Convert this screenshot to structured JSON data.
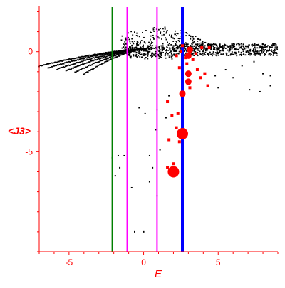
{
  "chart_data": {
    "type": "scatter",
    "title": "",
    "xlabel": "E",
    "ylabel": "<J3>",
    "xlim": [
      -7,
      9
    ],
    "ylim": [
      -10,
      2.3
    ],
    "xticks": [
      -5,
      0,
      5
    ],
    "yticks": [
      -5,
      0
    ],
    "grid": false,
    "colors": {
      "axes": "#ff0000",
      "points_black": "#000000",
      "points_red": "#ff0000",
      "line_green": "#008000",
      "line_magenta": "#ff00ff",
      "line_blue": "#0000ff"
    },
    "vertical_lines": [
      {
        "x": -2.1,
        "color": "green"
      },
      {
        "x": -1.1,
        "color": "magenta"
      },
      {
        "x": 0.9,
        "color": "magenta"
      },
      {
        "x": 2.6,
        "color": "blue"
      }
    ],
    "red_points": [
      {
        "x": 2.6,
        "y": -4.1,
        "size": "large"
      },
      {
        "x": 2.0,
        "y": -6.0,
        "size": "large"
      },
      {
        "x": 2.6,
        "y": -2.1,
        "size": "medium"
      },
      {
        "x": 3.0,
        "y": -1.5,
        "size": "medium"
      },
      {
        "x": 3.0,
        "y": -1.1,
        "size": "medium"
      },
      {
        "x": 3.0,
        "y": -0.2,
        "size": "medium"
      },
      {
        "x": 3.1,
        "y": 0.1,
        "size": "medium"
      },
      {
        "x": 2.5,
        "y": 0.0,
        "size": "small"
      },
      {
        "x": 2.8,
        "y": -0.3,
        "size": "small"
      },
      {
        "x": 3.3,
        "y": -0.4,
        "size": "small"
      },
      {
        "x": 3.6,
        "y": -0.9,
        "size": "small"
      },
      {
        "x": 3.8,
        "y": -1.3,
        "size": "small"
      },
      {
        "x": 2.4,
        "y": -0.8,
        "size": "small"
      },
      {
        "x": 2.9,
        "y": -0.6,
        "size": "small"
      },
      {
        "x": 3.1,
        "y": -1.8,
        "size": "small"
      },
      {
        "x": 4.1,
        "y": -1.1,
        "size": "small"
      },
      {
        "x": 4.3,
        "y": -1.7,
        "size": "small"
      },
      {
        "x": 3.9,
        "y": 0.2,
        "size": "small"
      },
      {
        "x": 4.4,
        "y": 0.2,
        "size": "small"
      },
      {
        "x": 3.5,
        "y": -0.1,
        "size": "small"
      },
      {
        "x": 2.2,
        "y": -0.2,
        "size": "small"
      },
      {
        "x": 2.6,
        "y": 0.3,
        "size": "small"
      },
      {
        "x": 2.2,
        "y": -3.8,
        "size": "small"
      },
      {
        "x": 2.4,
        "y": -4.5,
        "size": "small"
      },
      {
        "x": 1.7,
        "y": -4.4,
        "size": "small"
      },
      {
        "x": 2.0,
        "y": -5.6,
        "size": "small"
      },
      {
        "x": 1.6,
        "y": -5.8,
        "size": "small"
      },
      {
        "x": 1.6,
        "y": -2.5,
        "size": "small"
      },
      {
        "x": 1.9,
        "y": -3.2,
        "size": "small"
      },
      {
        "x": 2.3,
        "y": -3.1,
        "size": "small"
      }
    ],
    "black_points": [
      {
        "x": -2.1,
        "y": -5.3
      },
      {
        "x": -1.7,
        "y": -5.2
      },
      {
        "x": -1.3,
        "y": -5.2
      },
      {
        "x": -1.6,
        "y": -5.8
      },
      {
        "x": -1.9,
        "y": -6.2
      },
      {
        "x": 0.4,
        "y": -5.2
      },
      {
        "x": 0.6,
        "y": -5.8
      },
      {
        "x": 1.1,
        "y": -4.9
      },
      {
        "x": 0.8,
        "y": -3.9
      },
      {
        "x": 0.1,
        "y": -3.1
      },
      {
        "x": 0.9,
        "y": -2.9
      },
      {
        "x": -0.3,
        "y": -2.8
      },
      {
        "x": 0.4,
        "y": -6.5
      },
      {
        "x": -0.8,
        "y": -6.8
      },
      {
        "x": 0.0,
        "y": -9.0
      },
      {
        "x": -0.6,
        "y": -9.0
      },
      {
        "x": 0.9,
        "y": -7.2
      },
      {
        "x": 1.5,
        "y": -3.3
      },
      {
        "x": 1.7,
        "y": -2.2
      },
      {
        "x": 5.0,
        "y": -1.8
      },
      {
        "x": 6.0,
        "y": -1.3
      },
      {
        "x": 7.1,
        "y": -1.9
      },
      {
        "x": 7.8,
        "y": -2.0
      },
      {
        "x": 8.5,
        "y": -1.7
      },
      {
        "x": 6.6,
        "y": -0.7
      },
      {
        "x": 7.4,
        "y": -0.5
      },
      {
        "x": 8.0,
        "y": -1.1
      },
      {
        "x": 8.5,
        "y": -1.2
      },
      {
        "x": 5.5,
        "y": -0.9
      },
      {
        "x": 4.8,
        "y": -1.2
      }
    ],
    "black_band_labels": "dense black point cloud; curves from (-7,-0.8) converging near (0,0) then flat band y≈-0.2..0.4 out to x=9; upper arc peaking near x≈1, y≈1.2"
  }
}
